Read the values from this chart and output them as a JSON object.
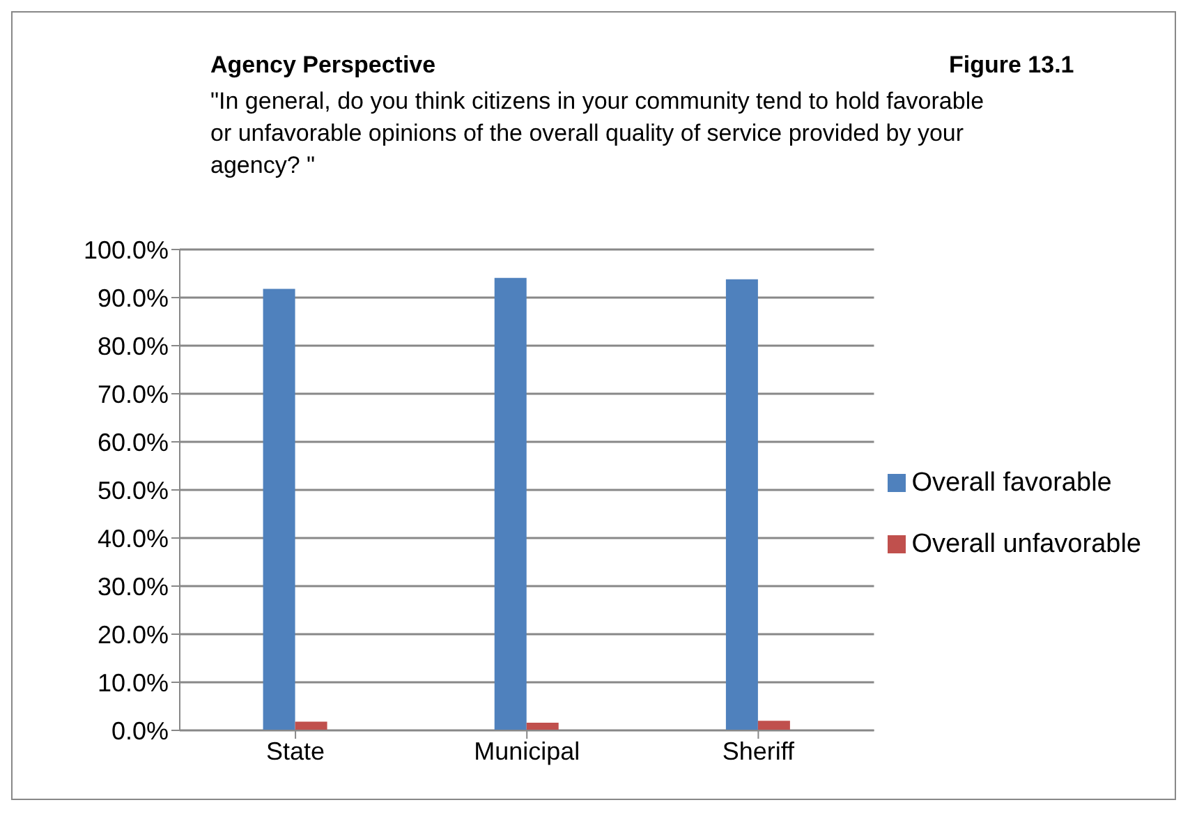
{
  "chart_data": {
    "type": "bar",
    "title": "Agency Perspective",
    "subtitle": "\"In general, do you think citizens in your community tend to hold favorable or unfavorable  opinions of the overall quality of service provided by your agency? \"",
    "annotations": [
      "Figure 13.1"
    ],
    "categories": [
      "State",
      "Municipal",
      "Sheriff"
    ],
    "series": [
      {
        "name": "Overall favorable",
        "color": "#4f81bd",
        "values": [
          91.8,
          94.1,
          93.8
        ]
      },
      {
        "name": "Overall unfavorable",
        "color": "#c0504d",
        "values": [
          1.8,
          1.6,
          2.0
        ]
      }
    ],
    "ylim": [
      0,
      100
    ],
    "yticks": [
      {
        "value": 0,
        "label": "0.0%"
      },
      {
        "value": 10,
        "label": "10.0%"
      },
      {
        "value": 20,
        "label": "20.0%"
      },
      {
        "value": 30,
        "label": "30.0%"
      },
      {
        "value": 40,
        "label": "40.0%"
      },
      {
        "value": 50,
        "label": "50.0%"
      },
      {
        "value": 60,
        "label": "60.0%"
      },
      {
        "value": 70,
        "label": "70.0%"
      },
      {
        "value": 80,
        "label": "80.0%"
      },
      {
        "value": 90,
        "label": "90.0%"
      },
      {
        "value": 100,
        "label": "100.0%"
      }
    ],
    "grid": "y",
    "legend": "right"
  }
}
